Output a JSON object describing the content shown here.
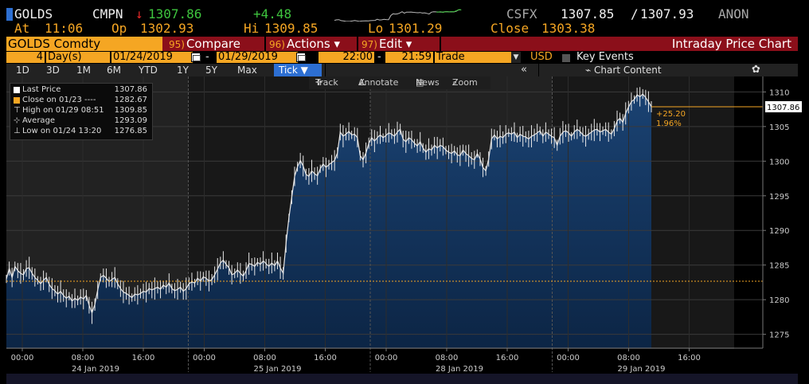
{
  "quote": {
    "ticker": "GOLDS",
    "source": "CMPN",
    "direction_arrow": "↓",
    "last": "1307.86",
    "change": "+4.48",
    "exchange": "CSFX",
    "bid": "1307.85",
    "ask": "1307.93",
    "quote_source": "ANON",
    "bid_ask_sep": "/",
    "at_label": "At",
    "at_time": "11:06",
    "open_label": "Op",
    "open": "1302.93",
    "high_label": "Hi",
    "high": "1309.85",
    "low_label": "Lo",
    "low": "1301.29",
    "close_label": "Close",
    "close": "1303.38"
  },
  "toolbar": {
    "security": "GOLDS Comdty",
    "compare_num": "95)",
    "compare_label": "Compare",
    "actions_num": "96)",
    "actions_label": "Actions ▾",
    "edit_num": "97)",
    "edit_label": "Edit ▾",
    "title": "Intraday Price Chart"
  },
  "range": {
    "count": "4",
    "unit": "Day(s)",
    "start_date": "01/24/2019",
    "end_date": "01/29/2019",
    "start_time": "22:00",
    "end_time": "21:59",
    "dash": "-",
    "market": "Trade",
    "currency": "USD",
    "events_label": "Key Events"
  },
  "periods": [
    "1D",
    "3D",
    "1M",
    "6M",
    "YTD",
    "1Y",
    "5Y",
    "Max"
  ],
  "tick_label": "Tick ▼",
  "chart_nav": {
    "double_arrow": "«",
    "chart_content": "Chart Content",
    "settings_icon": "gear-icon",
    "settings_glyph": "✿"
  },
  "tools": {
    "track": "Track",
    "annotate": "Annotate",
    "news": "News",
    "zoom": "Zoom"
  },
  "legend": [
    {
      "label": "Last Price",
      "value": "1307.86",
      "color": "#ffffff"
    },
    {
      "label": "Close on 01/23 ----",
      "value": "1282.67",
      "color": "#f5a623"
    },
    {
      "label": "High on 01/29 08:51",
      "value": "1309.85",
      "color": "#cccccc"
    },
    {
      "label": "Average",
      "value": "1293.09",
      "color": "#cccccc"
    },
    {
      "label": "Low on 01/24 13:20",
      "value": "1276.85",
      "color": "#cccccc"
    }
  ],
  "colors": {
    "amber": "#f5a623",
    "green": "#3ec43e",
    "red": "#e02828",
    "area_fill": "#123258",
    "toolbar_red": "#8b0f1a",
    "accent_blue": "#2d6fd2"
  },
  "chart_data": {
    "type": "area",
    "ylim": [
      1273,
      1312
    ],
    "yticks": [
      1275,
      1280,
      1285,
      1290,
      1295,
      1300,
      1305,
      1310
    ],
    "ytick_labels": [
      "1275",
      "1280",
      "1285",
      "1290",
      "1295",
      "1300",
      "1305",
      "1310"
    ],
    "prior_close": 1282.67,
    "last_value_label": "1307.86",
    "change_label": "+25.20",
    "change_pct_label": "1.96%",
    "grid": true,
    "days": [
      {
        "date_label": "24 Jan 2019",
        "tick_labels": [
          "00:00",
          "08:00",
          "16:00"
        ]
      },
      {
        "date_label": "25 Jan 2019",
        "tick_labels": [
          "00:00",
          "08:00",
          "16:00"
        ]
      },
      {
        "date_label": "28 Jan 2019",
        "tick_labels": [
          "00:00",
          "08:00",
          "16:00"
        ]
      },
      {
        "date_label": "29 Jan 2019",
        "tick_labels": [
          "00:00",
          "08:00",
          "16:00"
        ]
      }
    ],
    "series": [
      {
        "values": [
          1283,
          1284.5,
          1283.2,
          1284.8,
          1284.2,
          1283.8,
          1283.6,
          1284.5,
          1284.6,
          1283.8,
          1283.2,
          1282.8,
          1282.3,
          1282.8,
          1283.2,
          1282.2,
          1281.6,
          1281.3,
          1280.8,
          1281.2,
          1280.6,
          1280.2,
          1280.5,
          1279.8,
          1280.2,
          1279.9,
          1280.4,
          1280.1,
          1280.6,
          1279.2,
          1278.1,
          1279.3,
          1281.4,
          1283.2,
          1283.5,
          1283.1,
          1282.6,
          1282.9,
          1283.2,
          1282.3,
          1281.6,
          1281.1,
          1280.9,
          1280.6,
          1280.3,
          1280.8,
          1280.7,
          1280.9,
          1281.2,
          1281.1,
          1281.6,
          1281.4,
          1281.6,
          1281.8,
          1281.5,
          1282.1,
          1281.8,
          1282.4,
          1281.6,
          1281.3,
          1281.5,
          1281.8,
          1281.2,
          1281.6,
          1282.3,
          1282.6,
          1282.4,
          1283.1,
          1282.7,
          1283.3,
          1283.1,
          1282.7,
          1282.9,
          1283.6,
          1284.4,
          1285.3,
          1285.7,
          1285.1,
          1284.6,
          1283.6,
          1283.8,
          1284.3,
          1283.8,
          1283.4,
          1284.2,
          1285.2,
          1285.1,
          1284.8,
          1285.4,
          1285.1,
          1285.6,
          1285.2,
          1284.8,
          1285.3,
          1284.9,
          1285.6,
          1284.6,
          1283.8,
          1288.1,
          1291.8,
          1294.8,
          1297.8,
          1299.2,
          1300.1,
          1299.3,
          1298.1,
          1297.8,
          1298.6,
          1298.2,
          1297.9,
          1298.9,
          1299.6,
          1299.1,
          1299.5,
          1299.8,
          1300.1,
          1301.2,
          1304.2,
          1303.6,
          1303.9,
          1304.3,
          1303.8,
          1303.9,
          1303.4,
          1300.8,
          1300.2,
          1301.2,
          1302.6,
          1303.4,
          1302.9,
          1303.4,
          1303.8,
          1303.4,
          1303.7,
          1304.1,
          1303.9,
          1303.6,
          1304.2,
          1304.6,
          1303.2,
          1302.8,
          1303.4,
          1303.1,
          1302.6,
          1302.2,
          1302.8,
          1301.9,
          1301.3,
          1301.8,
          1301.6,
          1302.3,
          1301.9,
          1302.3,
          1302.1,
          1301.6,
          1301.3,
          1301.1,
          1301.5,
          1300.9,
          1300.8,
          1301.6,
          1301.1,
          1300.8,
          1300.4,
          1300.2,
          1301.1,
          1300.3,
          1299.1,
          1298.6,
          1300.3,
          1303.2,
          1303.8,
          1303.2,
          1303.6,
          1303.4,
          1303.9,
          1304.1,
          1303.9,
          1304.2,
          1303.4,
          1303.9,
          1303.6,
          1303.5,
          1303.2,
          1303.6,
          1303.8,
          1304.1,
          1304.4,
          1303.6,
          1304.2,
          1303.9,
          1303.6,
          1303.4,
          1302.3,
          1303.6,
          1304.2,
          1304.4,
          1304.1,
          1303.6,
          1304.2,
          1304.6,
          1304.3,
          1303.8,
          1303.6,
          1303.9,
          1304.2,
          1304.5,
          1304.6,
          1304.2,
          1304.4,
          1304.6,
          1304.2,
          1303.9,
          1304.7,
          1305.8,
          1306.2,
          1305.6,
          1306.9,
          1307.8,
          1308.6,
          1308.9,
          1309.6,
          1309.3,
          1309.7,
          1309.2,
          1308.6,
          1307.86
        ]
      }
    ]
  }
}
